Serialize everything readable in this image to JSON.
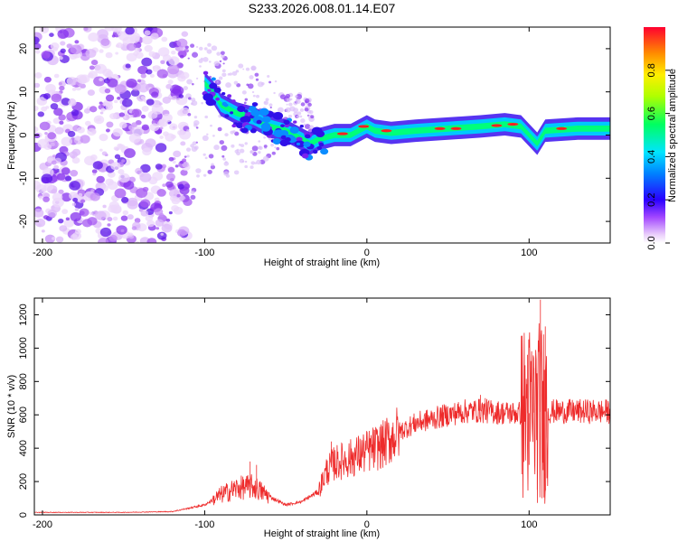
{
  "title": "S233.2026.008.01.14.E07",
  "chart_data": [
    {
      "type": "heatmap",
      "name": "spectrogram",
      "xlabel": "Height of straight line (km)",
      "ylabel": "Frequency (Hz)",
      "xlim": [
        -205,
        150
      ],
      "ylim": [
        -25,
        25
      ],
      "xticks": [
        -200,
        -100,
        0,
        100
      ],
      "xtick_labels": [
        "-200",
        "-100",
        "0",
        "100"
      ],
      "yticks": [
        20,
        10,
        0,
        -10,
        -20
      ],
      "ytick_labels": [
        "20",
        "10",
        "0",
        "-10",
        "-20"
      ],
      "noise_region_x": [
        -205,
        -110
      ],
      "signal_ridge": [
        {
          "x": -100,
          "f": 12
        },
        {
          "x": -95,
          "f": 10
        },
        {
          "x": -90,
          "f": 7
        },
        {
          "x": -80,
          "f": 5
        },
        {
          "x": -70,
          "f": 4
        },
        {
          "x": -60,
          "f": 2
        },
        {
          "x": -50,
          "f": 1
        },
        {
          "x": -40,
          "f": -1
        },
        {
          "x": -35,
          "f": -2
        },
        {
          "x": -30,
          "f": -1
        },
        {
          "x": -20,
          "f": 0
        },
        {
          "x": -10,
          "f": 0
        },
        {
          "x": 0,
          "f": 2
        },
        {
          "x": 5,
          "f": 1
        },
        {
          "x": 15,
          "f": 0.5
        },
        {
          "x": 30,
          "f": 1
        },
        {
          "x": 50,
          "f": 1.5
        },
        {
          "x": 70,
          "f": 2
        },
        {
          "x": 85,
          "f": 2.5
        },
        {
          "x": 95,
          "f": 2
        },
        {
          "x": 100,
          "f": 0
        },
        {
          "x": 105,
          "f": -2
        },
        {
          "x": 110,
          "f": 1
        },
        {
          "x": 130,
          "f": 1.5
        },
        {
          "x": 150,
          "f": 1.5
        }
      ],
      "colorbar": {
        "label": "Normalized spectral amplitude",
        "range": [
          0,
          1
        ],
        "ticks": [
          0.0,
          0.2,
          0.4,
          0.6,
          0.8
        ],
        "tick_labels": [
          "0.0",
          "0.2",
          "0.4",
          "0.6",
          "0.8"
        ]
      }
    },
    {
      "type": "line",
      "name": "snr",
      "xlabel": "Height of straight line (km)",
      "ylabel": "SNR (10 * v/v)",
      "xlim": [
        -205,
        150
      ],
      "ylim": [
        0,
        1300
      ],
      "xticks": [
        -200,
        -100,
        0,
        100
      ],
      "xtick_labels": [
        "-200",
        "-100",
        "0",
        "100"
      ],
      "yticks": [
        0,
        200,
        400,
        600,
        800,
        1000,
        1200
      ],
      "ytick_labels": [
        "0",
        "200",
        "400",
        "600",
        "800",
        "1000",
        "1200"
      ],
      "line_color": "#ee2b2b",
      "envelope": [
        {
          "x": -205,
          "y": 15
        },
        {
          "x": -150,
          "y": 15
        },
        {
          "x": -120,
          "y": 20
        },
        {
          "x": -100,
          "y": 60
        },
        {
          "x": -90,
          "y": 120
        },
        {
          "x": -80,
          "y": 160
        },
        {
          "x": -70,
          "y": 170
        },
        {
          "x": -60,
          "y": 110
        },
        {
          "x": -50,
          "y": 60
        },
        {
          "x": -40,
          "y": 80
        },
        {
          "x": -30,
          "y": 140
        },
        {
          "x": -25,
          "y": 260
        },
        {
          "x": -20,
          "y": 310
        },
        {
          "x": -10,
          "y": 340
        },
        {
          "x": 0,
          "y": 380
        },
        {
          "x": 10,
          "y": 420
        },
        {
          "x": 20,
          "y": 500
        },
        {
          "x": 30,
          "y": 550
        },
        {
          "x": 50,
          "y": 600
        },
        {
          "x": 60,
          "y": 620
        },
        {
          "x": 70,
          "y": 625
        },
        {
          "x": 80,
          "y": 615
        },
        {
          "x": 90,
          "y": 610
        },
        {
          "x": 100,
          "y": 610
        },
        {
          "x": 110,
          "y": 620
        },
        {
          "x": 130,
          "y": 620
        },
        {
          "x": 150,
          "y": 620
        }
      ],
      "spikes": [
        {
          "x": -72,
          "y": 320
        },
        {
          "x": -68,
          "y": 300
        },
        {
          "x": -22,
          "y": 440
        },
        {
          "x": 70,
          "y": 720
        },
        {
          "x": 73,
          "y": 700
        },
        {
          "x": 99,
          "y": 960
        },
        {
          "x": 100,
          "y": 300
        },
        {
          "x": 103,
          "y": 880
        },
        {
          "x": 105,
          "y": 150
        },
        {
          "x": 107,
          "y": 1290
        },
        {
          "x": 108,
          "y": 100
        },
        {
          "x": 110,
          "y": 1130
        },
        {
          "x": 111,
          "y": 220
        }
      ]
    }
  ]
}
